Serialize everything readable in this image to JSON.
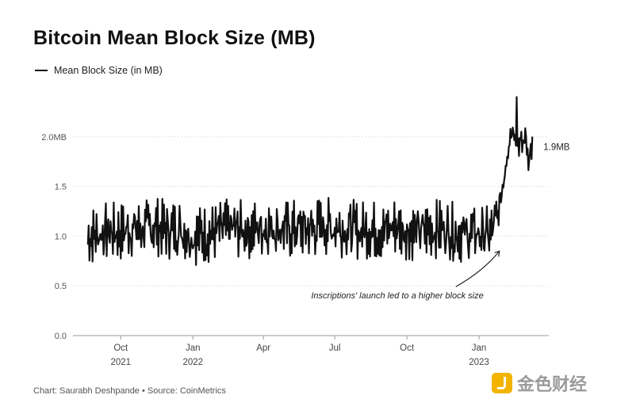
{
  "chart_data": {
    "type": "line",
    "title": "Bitcoin Mean Block Size (MB)",
    "legend": [
      {
        "label": "Mean Block Size (in MB)",
        "color": "#111111"
      }
    ],
    "ylabel": "",
    "xlabel": "",
    "ylim": [
      0,
      2.5
    ],
    "y_ticks": [
      {
        "value": 0.0,
        "label": "0.0"
      },
      {
        "value": 0.5,
        "label": "0.5"
      },
      {
        "value": 1.0,
        "label": "1.0"
      },
      {
        "value": 1.5,
        "label": "1.5"
      },
      {
        "value": 2.0,
        "label": "2.0MB"
      }
    ],
    "x_range": [
      "2021-08-01",
      "2023-03-31"
    ],
    "x_ticks": [
      {
        "date": "2021-10-01",
        "label": "Oct",
        "year": "2021"
      },
      {
        "date": "2022-01-01",
        "label": "Jan",
        "year": "2022"
      },
      {
        "date": "2022-04-01",
        "label": "Apr",
        "year": ""
      },
      {
        "date": "2022-07-01",
        "label": "Jul",
        "year": ""
      },
      {
        "date": "2022-10-01",
        "label": "Oct",
        "year": ""
      },
      {
        "date": "2023-01-01",
        "label": "Jan",
        "year": "2023"
      }
    ],
    "series": [
      {
        "name": "Mean Block Size (in MB)",
        "color": "#111111",
        "x": [
          "2021-08-20",
          "2021-09-01",
          "2021-09-15",
          "2021-10-01",
          "2021-10-15",
          "2021-11-01",
          "2021-11-15",
          "2021-12-01",
          "2021-12-15",
          "2022-01-01",
          "2022-01-15",
          "2022-02-01",
          "2022-02-15",
          "2022-03-01",
          "2022-03-15",
          "2022-04-01",
          "2022-04-15",
          "2022-05-01",
          "2022-05-15",
          "2022-06-01",
          "2022-06-15",
          "2022-07-01",
          "2022-07-15",
          "2022-08-01",
          "2022-08-15",
          "2022-09-01",
          "2022-09-15",
          "2022-10-01",
          "2022-10-15",
          "2022-11-01",
          "2022-11-15",
          "2022-12-01",
          "2022-12-15",
          "2023-01-01",
          "2023-01-15",
          "2023-01-25",
          "2023-02-01",
          "2023-02-05",
          "2023-02-10",
          "2023-02-15",
          "2023-02-20",
          "2023-02-25",
          "2023-03-01",
          "2023-03-05",
          "2023-03-10"
        ],
        "y": [
          1.0,
          1.02,
          1.05,
          1.04,
          1.08,
          1.07,
          1.1,
          1.06,
          1.08,
          1.0,
          1.02,
          1.04,
          1.08,
          1.07,
          1.06,
          1.09,
          1.1,
          1.06,
          1.08,
          1.07,
          1.1,
          1.09,
          1.08,
          1.06,
          1.07,
          1.05,
          1.1,
          1.06,
          1.04,
          1.07,
          1.08,
          1.04,
          1.02,
          1.03,
          1.0,
          1.2,
          1.55,
          1.8,
          2.05,
          2.1,
          1.95,
          1.9,
          2.02,
          1.8,
          1.9
        ],
        "daily_range_min": 0.7,
        "daily_range_max": 1.45,
        "peak_value": 2.4,
        "end_label": "1.9MB"
      }
    ],
    "annotations": [
      {
        "text": "Inscriptions' launch led to a higher block size",
        "target_date": "2023-01-27",
        "target_value": 0.85
      }
    ]
  },
  "footer": {
    "source": "Chart: Saurabh Deshpande • Source: CoinMetrics"
  },
  "watermark": {
    "text": "金色财经"
  }
}
